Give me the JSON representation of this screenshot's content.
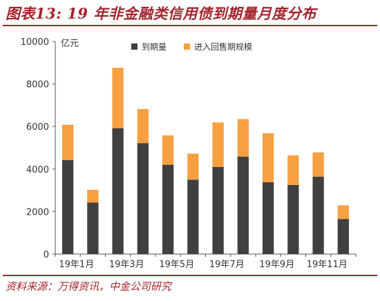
{
  "header": {
    "title": "图表13: 19 年非金融类信用债到期量月度分布"
  },
  "footer": {
    "source": "资料来源：万得资讯，中金公司研究"
  },
  "chart_data": {
    "type": "bar",
    "stacked": true,
    "categories": [
      "19年1月",
      "19年2月",
      "19年3月",
      "19年4月",
      "19年5月",
      "19年6月",
      "19年7月",
      "19年8月",
      "19年9月",
      "19年10月",
      "19年11月",
      "19年12月"
    ],
    "x_tick_labels": [
      "19年1月",
      "",
      "19年3月",
      "",
      "19年5月",
      "",
      "19年7月",
      "",
      "19年9月",
      "",
      "19年11月",
      ""
    ],
    "series": [
      {
        "name": "到期量",
        "color": "#404040",
        "values": [
          4420,
          2420,
          5920,
          5220,
          4200,
          3500,
          4100,
          4580,
          3380,
          3250,
          3640,
          1650
        ]
      },
      {
        "name": "进入回售期规模",
        "color": "#f7a041",
        "values": [
          1660,
          600,
          2840,
          1600,
          1380,
          1220,
          2090,
          1770,
          2300,
          1390,
          1140,
          640
        ]
      }
    ],
    "ylabel": "亿元",
    "ylim": [
      0,
      10000
    ],
    "y_ticks": [
      0,
      2000,
      4000,
      6000,
      8000,
      10000
    ],
    "y_tick_labels": [
      "0",
      "2000",
      "4000",
      "6000",
      "8000",
      "10000"
    ],
    "legend_position": "top-center",
    "grid": false
  }
}
